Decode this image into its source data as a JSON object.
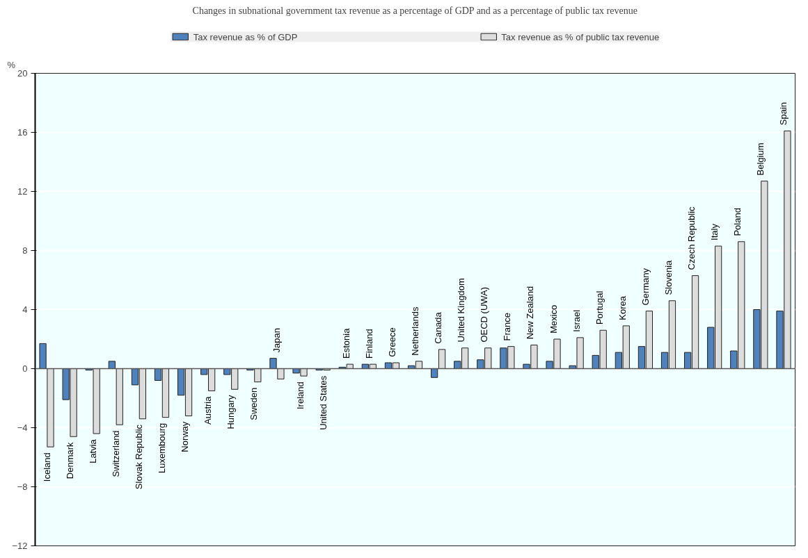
{
  "chart_data": {
    "type": "bar",
    "title": "Changes in subnational government tax revenue as a percentage of GDP and as a percentage of public tax revenue",
    "ylabel": "%",
    "categories": [
      "Iceland",
      "Denmark",
      "Latvia",
      "Switzerland",
      "Slovak Republic",
      "Luxembourg",
      "Norway",
      "Austria",
      "Hungary",
      "Sweden",
      "Japan",
      "Ireland",
      "United States",
      "Estonia",
      "Finland",
      "Greece",
      "Netherlands",
      "Canada",
      "United Kingdom",
      "OECD (UWA)",
      "France",
      "New Zealand",
      "Mexico",
      "Israel",
      "Portugal",
      "Korea",
      "Germany",
      "Slovenia",
      "Czech Republic",
      "Italy",
      "Poland",
      "Belgium",
      "Spain"
    ],
    "series": [
      {
        "name": "Tax revenue as % of GDP",
        "color": "#4f81bd",
        "values": [
          1.7,
          -2.1,
          -0.1,
          0.5,
          -1.1,
          -0.8,
          -1.8,
          -0.4,
          -0.4,
          -0.1,
          0.7,
          -0.3,
          -0.1,
          0.1,
          0.3,
          0.4,
          0.2,
          -0.6,
          0.5,
          0.6,
          1.4,
          0.3,
          0.5,
          0.2,
          0.9,
          1.1,
          1.5,
          1.1,
          1.1,
          2.8,
          1.2,
          4.0,
          3.9
        ]
      },
      {
        "name": "Tax revenue as % of public tax revenue",
        "color": "#dcdcdc",
        "values": [
          -5.3,
          -4.6,
          -4.4,
          -3.8,
          -3.4,
          -3.3,
          -3.2,
          -1.5,
          -1.4,
          -0.9,
          -0.7,
          -0.5,
          -0.1,
          0.3,
          0.3,
          0.4,
          0.5,
          1.3,
          1.4,
          1.4,
          1.5,
          1.6,
          2.0,
          2.1,
          2.6,
          2.9,
          3.9,
          4.6,
          6.3,
          8.3,
          8.6,
          12.7,
          16.1
        ]
      }
    ],
    "ylim": [
      -12,
      20
    ],
    "yticks": [
      -12,
      -8,
      -4,
      0,
      4,
      8,
      12,
      16,
      20
    ],
    "grid": "y",
    "legend": "top"
  }
}
